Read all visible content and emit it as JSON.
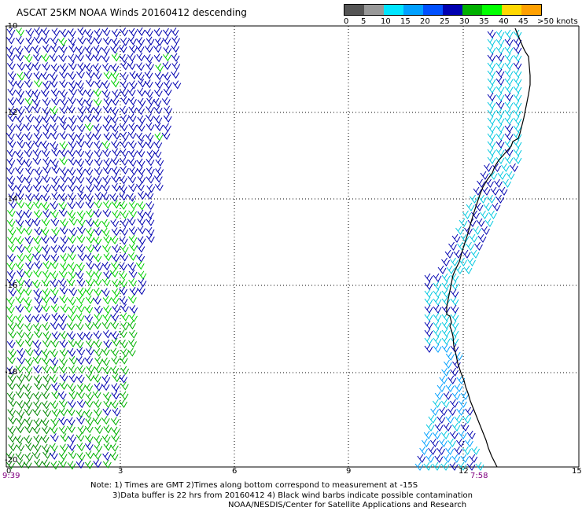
{
  "title": "ASCAT 25KM NOAA Winds 20160412 descending",
  "legend": {
    "colors": [
      "#555555",
      "#999999",
      "#00e5ff",
      "#00a0ff",
      "#0050ff",
      "#0000b0",
      "#00b000",
      "#00ff00",
      "#ffd800",
      "#ffa000",
      "#ff5a00",
      "#d40000",
      "#8b4513",
      "#c85a4a",
      "#ff00ff",
      "#cc00cc",
      "#8800aa",
      "#3a0066"
    ],
    "labels": [
      "0",
      "5",
      "10",
      "15",
      "20",
      "25",
      "30",
      "35",
      "40",
      "45",
      ">50 knots"
    ]
  },
  "map": {
    "y_tick_labels": [
      "-10",
      "-12",
      "-14",
      "-16",
      "-18",
      "-20"
    ],
    "x_tick_labels": [
      "0",
      "3",
      "6",
      "9",
      "12",
      "15"
    ],
    "pass_times": [
      "9:39",
      "7:58"
    ]
  },
  "notes": {
    "line1": "Note: 1) Times are GMT 2)Times along bottom correspond to measurement at -15S",
    "line2": "3)Data buffer is 22 hrs from 20160412 4) Black wind barbs indicate possible contamination",
    "line3": "NOAA/NESDIS/Center for Satellite Applications and Research"
  }
}
